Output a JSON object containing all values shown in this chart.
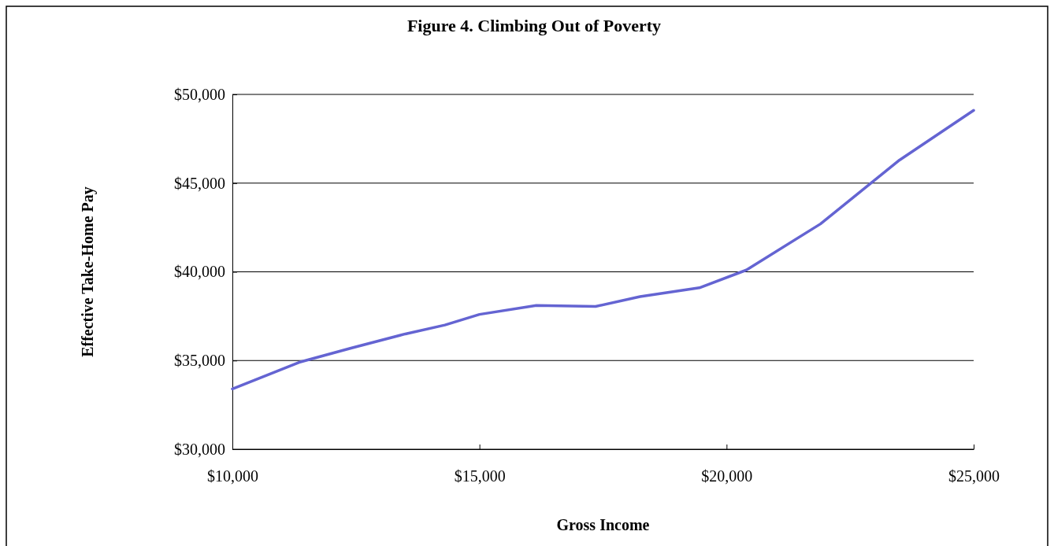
{
  "chart_data": {
    "type": "line",
    "title": "Figure 4. Climbing Out of Poverty",
    "xlabel": "Gross Income",
    "ylabel": "Effective Take-Home Pay",
    "x": [
      10000,
      11350,
      12400,
      13500,
      14300,
      15000,
      16150,
      17350,
      18250,
      19450,
      20400,
      21900,
      23500,
      25000
    ],
    "series": [
      {
        "color": "#6464d2",
        "values": [
          33400,
          34900,
          35700,
          36500,
          37000,
          37600,
          38100,
          38050,
          38600,
          39100,
          40100,
          42700,
          46300,
          49100
        ]
      }
    ],
    "xlim": [
      10000,
      25000
    ],
    "xticks": [
      {
        "value": 10000,
        "label": "$10,000"
      },
      {
        "value": 15000,
        "label": "$15,000"
      },
      {
        "value": 20000,
        "label": "$20,000"
      },
      {
        "value": 25000,
        "label": "$25,000"
      }
    ],
    "ylim": [
      30000,
      50000
    ],
    "yticks": [
      {
        "value": 30000,
        "label": "$30,000"
      },
      {
        "value": 35000,
        "label": "$35,000"
      },
      {
        "value": 40000,
        "label": "$40,000"
      },
      {
        "value": 45000,
        "label": "$45,000"
      },
      {
        "value": 50000,
        "label": "$50,000"
      }
    ],
    "grid": "y",
    "marker": "none",
    "line_style": "solid"
  }
}
